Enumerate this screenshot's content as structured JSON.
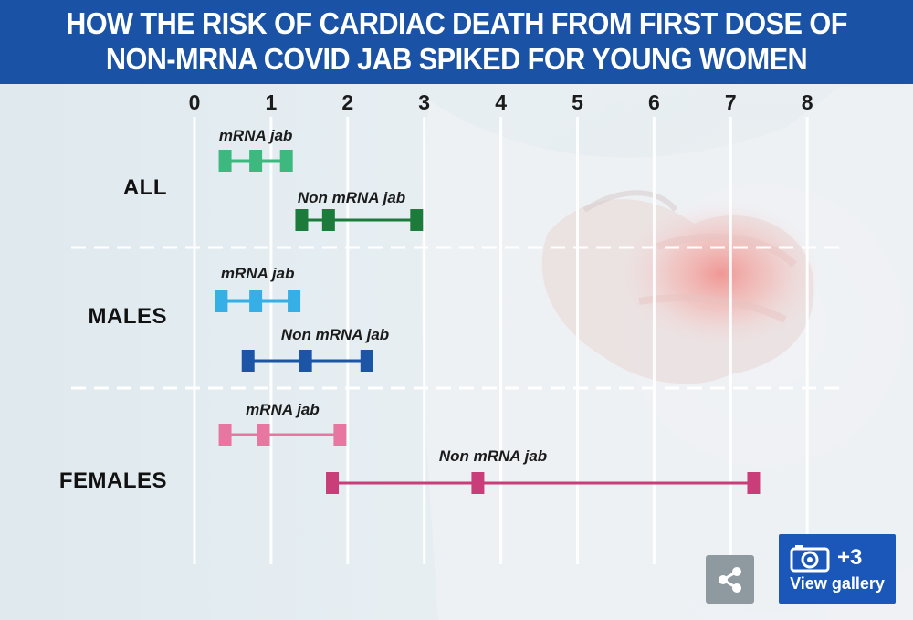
{
  "title": {
    "line1": "HOW THE RISK OF CARDIAC DEATH FROM FIRST DOSE OF",
    "line2": "NON-MRNA COVID JAB SPIKED FOR YOUNG WOMEN"
  },
  "chart_data": {
    "type": "interval",
    "x_ticks": [
      "0",
      "1",
      "2",
      "3",
      "4",
      "5",
      "6",
      "7",
      "8"
    ],
    "xlim": [
      0,
      8
    ],
    "grid": true,
    "groups": [
      {
        "label": "ALL",
        "series": [
          {
            "name": "mRNA jab",
            "low": 0.4,
            "mid": 0.8,
            "high": 1.2,
            "color": "#3db87f"
          },
          {
            "name": "Non mRNA jab",
            "low": 1.4,
            "mid": 1.75,
            "high": 2.9,
            "color": "#1c7a3a"
          }
        ]
      },
      {
        "label": "MALES",
        "series": [
          {
            "name": "mRNA jab",
            "low": 0.35,
            "mid": 0.8,
            "high": 1.3,
            "color": "#36aee6"
          },
          {
            "name": "Non mRNA jab",
            "low": 0.7,
            "mid": 1.45,
            "high": 2.25,
            "color": "#1d55a6"
          }
        ]
      },
      {
        "label": "FEMALES",
        "series": [
          {
            "name": "mRNA jab",
            "low": 0.4,
            "mid": 0.9,
            "high": 1.9,
            "color": "#e776a1"
          },
          {
            "name": "Non mRNA jab",
            "low": 1.8,
            "mid": 3.7,
            "high": 7.3,
            "color": "#c93d78"
          }
        ]
      }
    ]
  },
  "colors": {
    "header": "#1a52a5",
    "gallery": "#1b56b9",
    "share": "#8f9aa0"
  },
  "icons": {
    "share": "share-icon",
    "gallery": "camera-icon"
  },
  "gallery": {
    "count": "+3",
    "label": "View gallery"
  }
}
